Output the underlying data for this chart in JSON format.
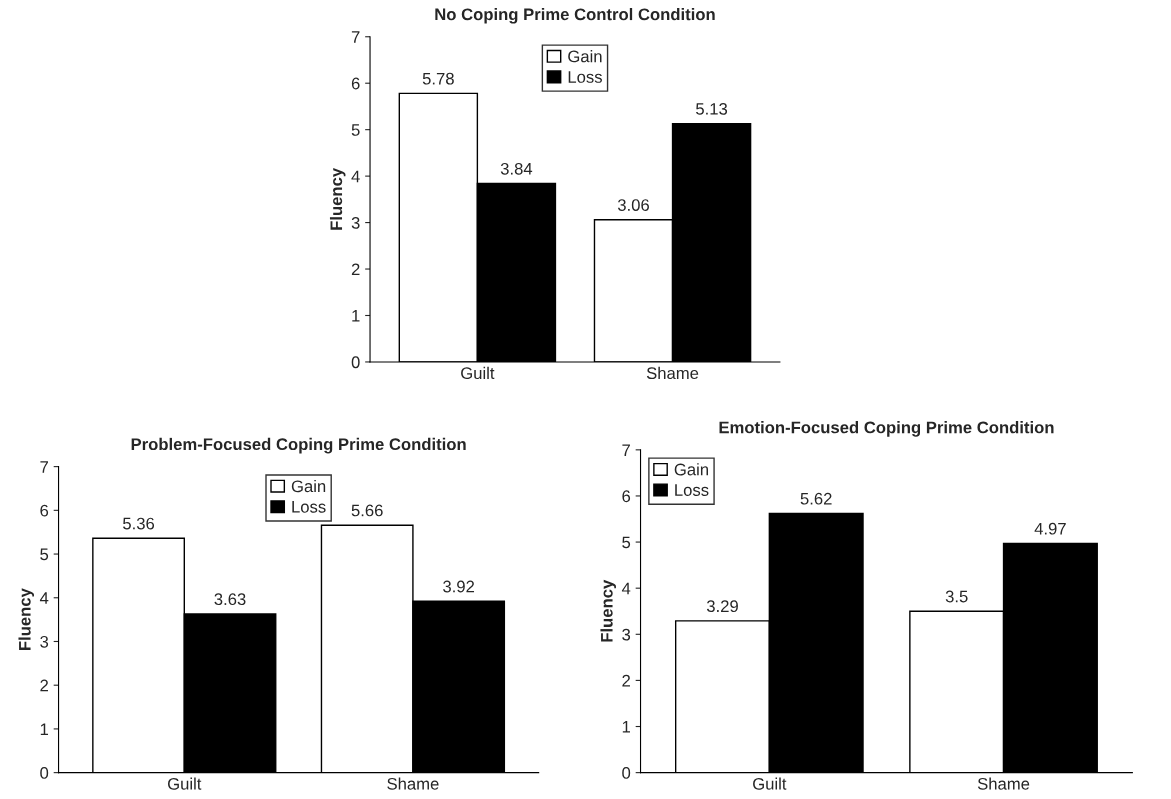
{
  "chart_data": [
    {
      "type": "bar",
      "title": "No Coping Prime Control Condition",
      "ylabel": "Fluency",
      "categories": [
        "Guilt",
        "Shame"
      ],
      "series": [
        {
          "name": "Gain",
          "color": "#ffffff",
          "values": [
            5.78,
            3.06
          ]
        },
        {
          "name": "Loss",
          "color": "#000000",
          "values": [
            3.84,
            5.13
          ]
        }
      ],
      "ylim": [
        0,
        7
      ],
      "yticks": [
        0,
        1,
        2,
        3,
        4,
        5,
        6,
        7
      ],
      "data_labels": true,
      "legend": "top center",
      "grid": false
    },
    {
      "type": "bar",
      "title": "Problem-Focused Coping Prime Condition",
      "ylabel": "Fluency",
      "categories": [
        "Guilt",
        "Shame"
      ],
      "series": [
        {
          "name": "Gain",
          "color": "#ffffff",
          "values": [
            5.36,
            5.66
          ]
        },
        {
          "name": "Loss",
          "color": "#000000",
          "values": [
            3.63,
            3.92
          ]
        }
      ],
      "ylim": [
        0,
        7
      ],
      "yticks": [
        0,
        1,
        2,
        3,
        4,
        5,
        6,
        7
      ],
      "data_labels": true,
      "legend": "top center",
      "grid": false
    },
    {
      "type": "bar",
      "title": "Emotion-Focused Coping Prime Condition",
      "ylabel": "Fluency",
      "categories": [
        "Guilt",
        "Shame"
      ],
      "series": [
        {
          "name": "Gain",
          "color": "#ffffff",
          "values": [
            3.29,
            3.5
          ]
        },
        {
          "name": "Loss",
          "color": "#000000",
          "values": [
            5.62,
            4.97
          ]
        }
      ],
      "ylim": [
        0,
        7
      ],
      "yticks": [
        0,
        1,
        2,
        3,
        4,
        5,
        6,
        7
      ],
      "data_labels": true,
      "legend": "top left",
      "grid": false
    }
  ]
}
